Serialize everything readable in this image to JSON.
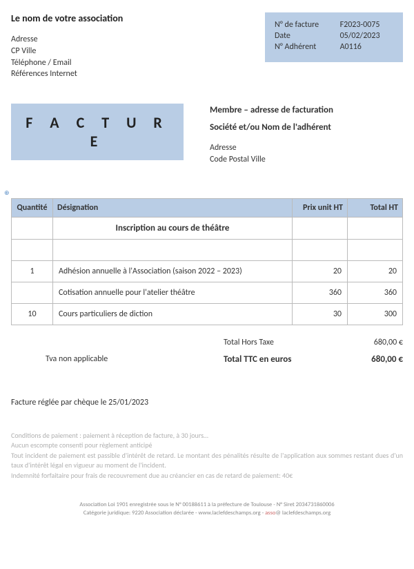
{
  "org": {
    "name": "Le nom de votre association",
    "lines": [
      "Adresse",
      "CP Ville",
      "Téléphone / Email",
      "Références Internet"
    ]
  },
  "info": {
    "rows": [
      {
        "label": "N° de facture",
        "value": "F2023-0075"
      },
      {
        "label": "Date",
        "value": "05/02/2023"
      },
      {
        "label": "N° Adhérent",
        "value": "A0116"
      }
    ],
    "bg_color": "#b9cde5"
  },
  "facture_label": "F A C T U R E",
  "billing": {
    "line1": "Membre – adresse de facturation",
    "line2": "Société et/ou Nom de l'adhérent",
    "addr": [
      "Adresse",
      "Code Postal Ville"
    ]
  },
  "table": {
    "headers": [
      "Quantité",
      "Désignation",
      "Prix unit HT",
      "Total HT"
    ],
    "section_title": "Inscription au cours de théâtre",
    "rows": [
      {
        "qty": "1",
        "desc": "Adhésion annuelle à l'Association (saison 2022 – 2023)",
        "unit": "20",
        "total": "20"
      },
      {
        "qty": "",
        "desc": "Cotisation annuelle pour l'atelier théâtre",
        "unit": "360",
        "total": "360"
      },
      {
        "qty": "10",
        "desc": "Cours particuliers de diction",
        "unit": "30",
        "total": "300"
      }
    ]
  },
  "totals": {
    "ht_label": "Total Hors Taxe",
    "ht_value": "680,00 €",
    "tva_note": "Tva non applicable",
    "ttc_label": "Total TTC en euros",
    "ttc_value": "680,00 €"
  },
  "paid_note": "Facture réglée par chèque le 25/01/2023",
  "conditions": [
    "Conditions de paiement : paiement à réception de facture, à 30 jours…",
    "Aucun escompte consenti pour règlement anticipé",
    "Tout incident de paiement est passible d'intérêt de retard. Le montant des pénalités résulte de l'application aux sommes restant dues d'un taux d'intérêt légal en vigueur au moment de l'incident.",
    "Indemnité forfaitaire pour frais de recouvrement due au créancier en cas de retard de paiement: 40€"
  ],
  "footer": {
    "line1": "Association Loi 1901 enregistrée sous le N° 00188611 à la préfecture de Toulouse - N° Siret 2034731860006",
    "line2a": "Catégorie juridique: 9220 Association déclarée  -  www.laclefdeschamps.org  -  ",
    "line2b": "asso",
    "line2c": "@ laclefdeschamps.org"
  },
  "anchor_symbol": "⊕"
}
